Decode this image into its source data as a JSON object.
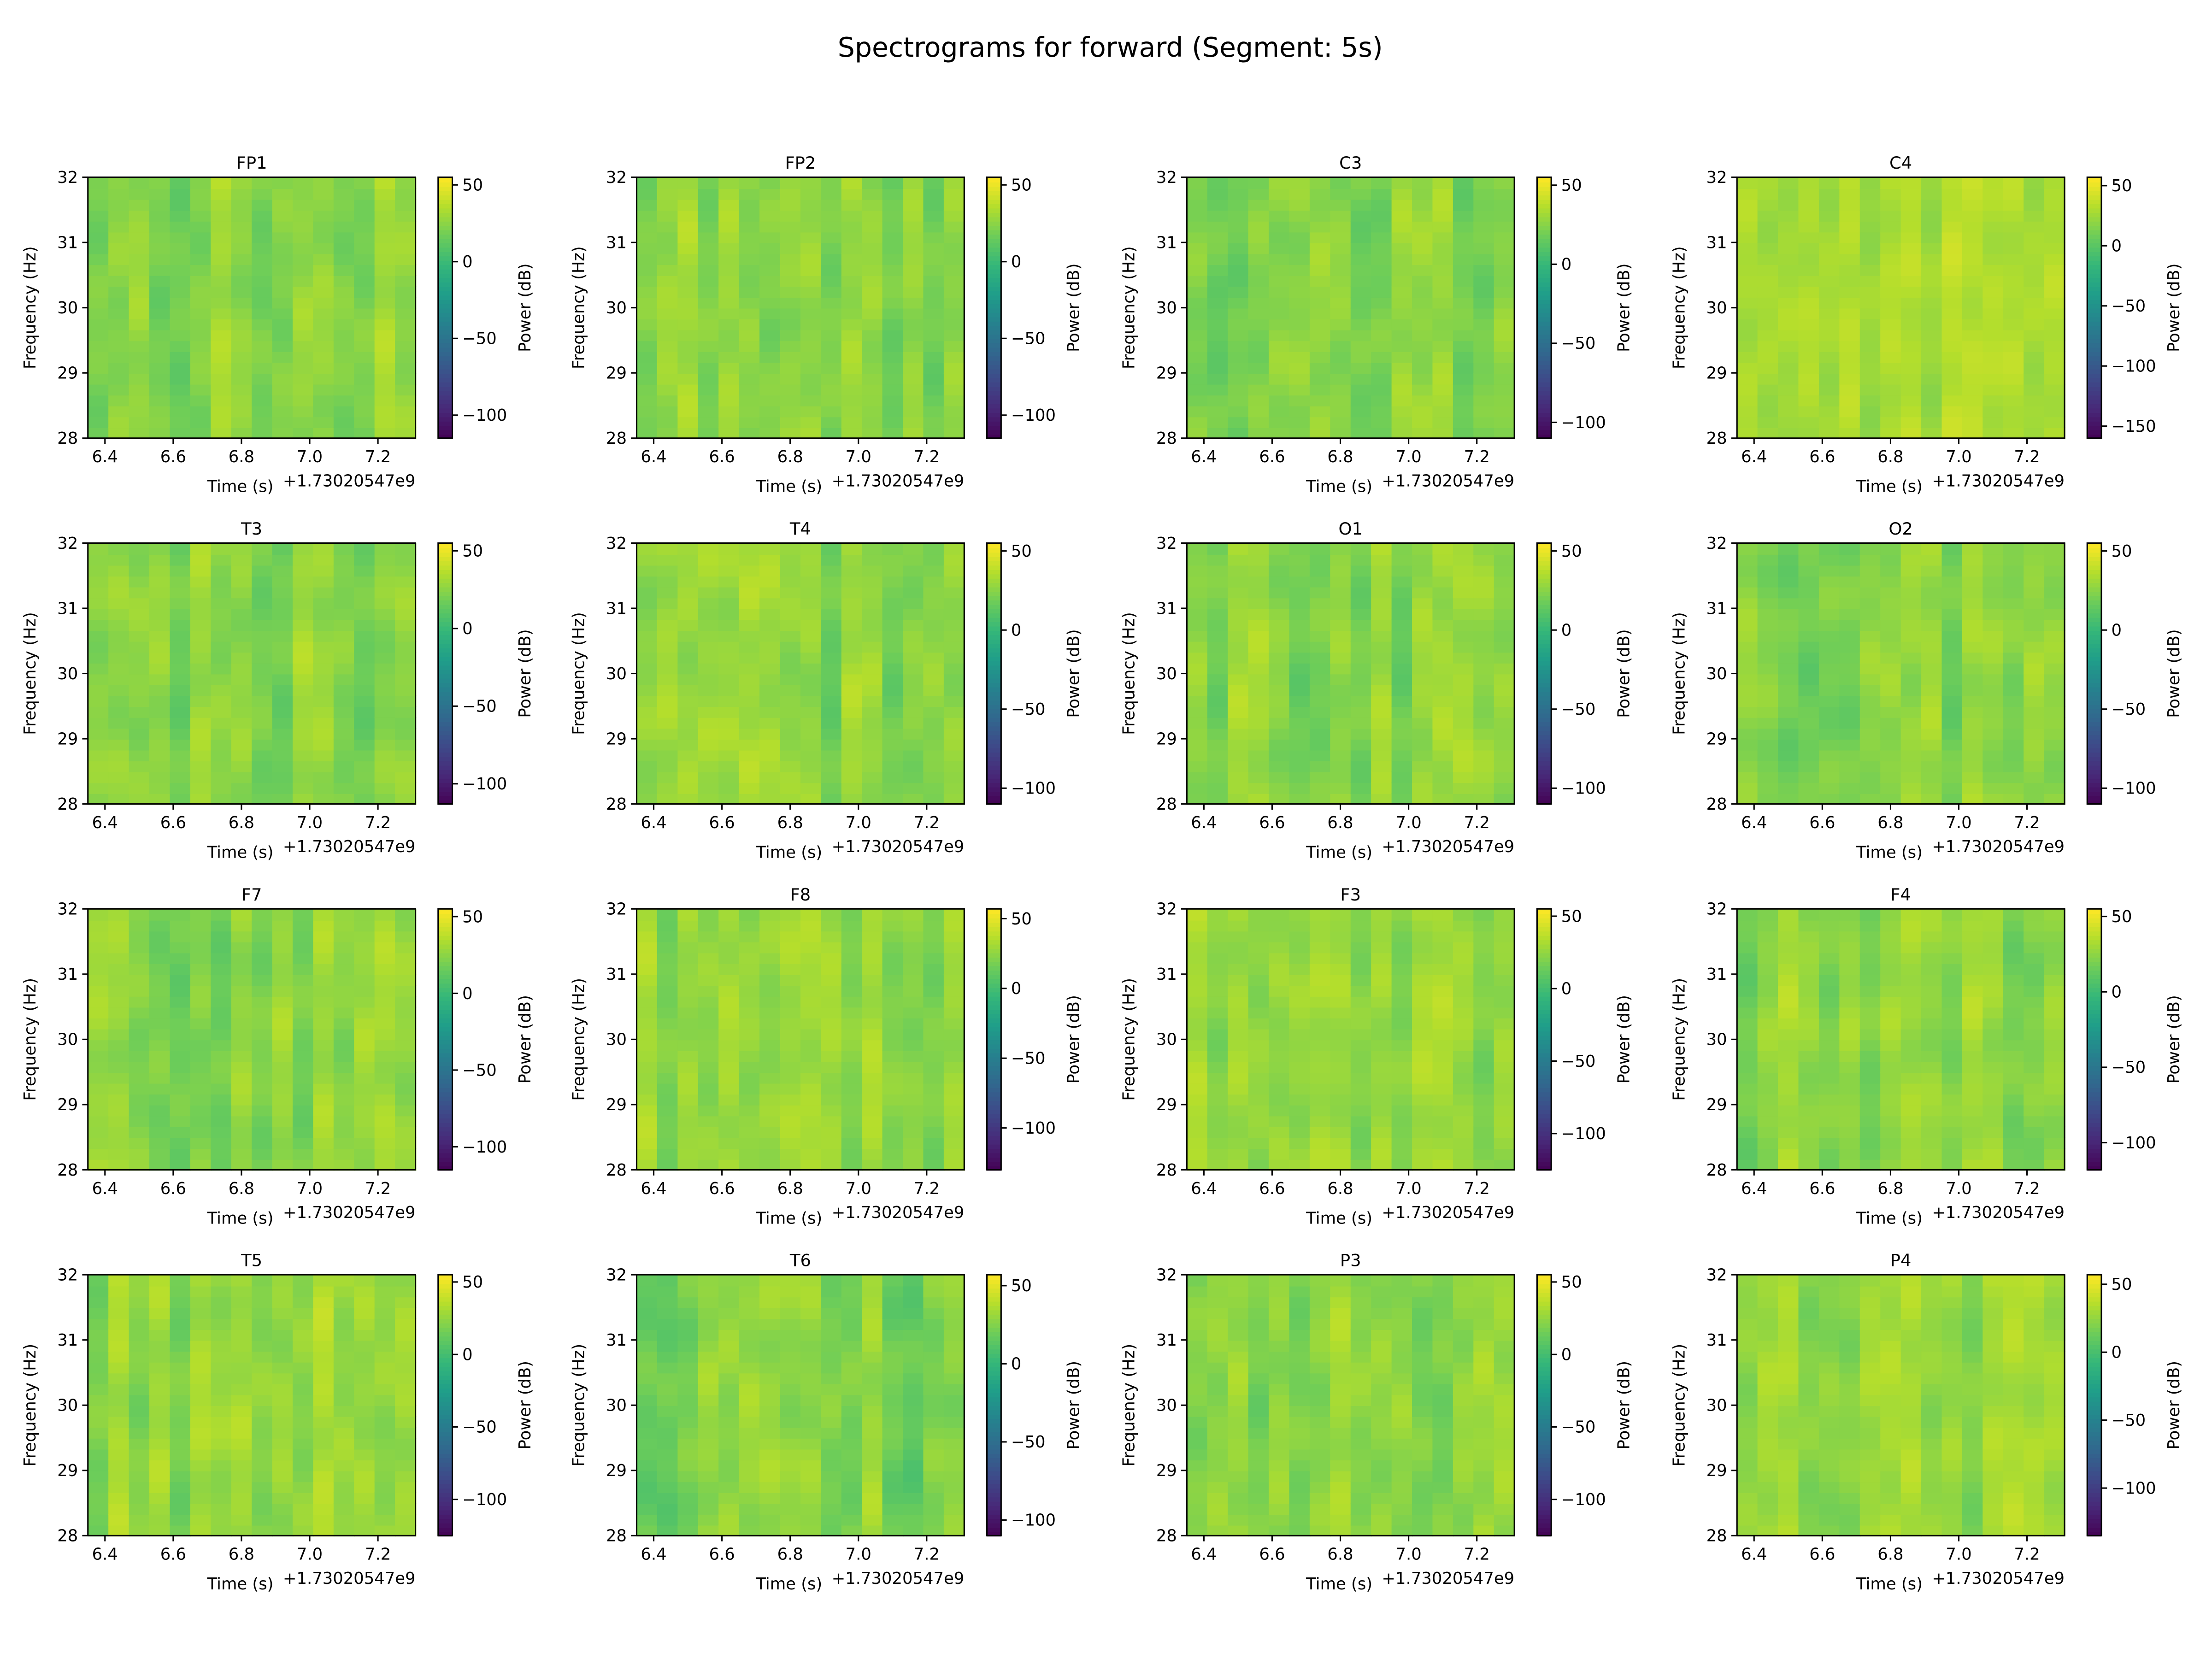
{
  "figure_title": "Spectrograms for forward (Segment: 5s)",
  "colors": {
    "colormap": "viridis"
  },
  "shared": {
    "xlabel": "Time (s)",
    "ylabel": "Frequency (Hz)",
    "colorbar_label": "Power (dB)",
    "x_offset": "+1.73020547e9",
    "xticks": [
      "6.4",
      "6.6",
      "6.8",
      "7.0",
      "7.2"
    ],
    "yticks": [
      "28",
      "29",
      "30",
      "31",
      "32"
    ]
  },
  "chart_data": [
    {
      "type": "heatmap",
      "title": "FP1",
      "xlim": [
        6.35,
        7.31
      ],
      "ylim": [
        28,
        32
      ],
      "clim": [
        -115,
        55
      ],
      "cbar_ticks": [
        "50",
        "0",
        "−50",
        "−100"
      ],
      "typical_power_db": [
        10,
        40
      ]
    },
    {
      "type": "heatmap",
      "title": "FP2",
      "xlim": [
        6.35,
        7.31
      ],
      "ylim": [
        28,
        32
      ],
      "clim": [
        -115,
        55
      ],
      "cbar_ticks": [
        "50",
        "0",
        "−50",
        "−100"
      ],
      "typical_power_db": [
        10,
        40
      ]
    },
    {
      "type": "heatmap",
      "title": "C3",
      "xlim": [
        6.35,
        7.31
      ],
      "ylim": [
        28,
        32
      ],
      "clim": [
        -110,
        55
      ],
      "cbar_ticks": [
        "50",
        "0",
        "−50",
        "−100"
      ],
      "typical_power_db": [
        10,
        40
      ]
    },
    {
      "type": "heatmap",
      "title": "C4",
      "xlim": [
        6.35,
        7.31
      ],
      "ylim": [
        28,
        32
      ],
      "clim": [
        -160,
        57
      ],
      "cbar_ticks": [
        "50",
        "0",
        "−50",
        "−100",
        "−150"
      ],
      "typical_power_db": [
        15,
        45
      ]
    },
    {
      "type": "heatmap",
      "title": "T3",
      "xlim": [
        6.35,
        7.31
      ],
      "ylim": [
        28,
        32
      ],
      "clim": [
        -113,
        55
      ],
      "cbar_ticks": [
        "50",
        "0",
        "−50",
        "−100"
      ],
      "typical_power_db": [
        10,
        40
      ]
    },
    {
      "type": "heatmap",
      "title": "T4",
      "xlim": [
        6.35,
        7.31
      ],
      "ylim": [
        28,
        32
      ],
      "clim": [
        -110,
        55
      ],
      "cbar_ticks": [
        "50",
        "0",
        "−50",
        "−100"
      ],
      "typical_power_db": [
        10,
        40
      ]
    },
    {
      "type": "heatmap",
      "title": "O1",
      "xlim": [
        6.35,
        7.31
      ],
      "ylim": [
        28,
        32
      ],
      "clim": [
        -110,
        55
      ],
      "cbar_ticks": [
        "50",
        "0",
        "−50",
        "−100"
      ],
      "typical_power_db": [
        10,
        40
      ]
    },
    {
      "type": "heatmap",
      "title": "O2",
      "xlim": [
        6.35,
        7.31
      ],
      "ylim": [
        28,
        32
      ],
      "clim": [
        -110,
        55
      ],
      "cbar_ticks": [
        "50",
        "0",
        "−50",
        "−100"
      ],
      "typical_power_db": [
        10,
        40
      ]
    },
    {
      "type": "heatmap",
      "title": "F7",
      "xlim": [
        6.35,
        7.31
      ],
      "ylim": [
        28,
        32
      ],
      "clim": [
        -115,
        55
      ],
      "cbar_ticks": [
        "50",
        "0",
        "−50",
        "−100"
      ],
      "typical_power_db": [
        10,
        40
      ]
    },
    {
      "type": "heatmap",
      "title": "F8",
      "xlim": [
        6.35,
        7.31
      ],
      "ylim": [
        28,
        32
      ],
      "clim": [
        -130,
        57
      ],
      "cbar_ticks": [
        "50",
        "0",
        "−50",
        "−100"
      ],
      "typical_power_db": [
        12,
        42
      ]
    },
    {
      "type": "heatmap",
      "title": "F3",
      "xlim": [
        6.35,
        7.31
      ],
      "ylim": [
        28,
        32
      ],
      "clim": [
        -125,
        55
      ],
      "cbar_ticks": [
        "50",
        "0",
        "−50",
        "−100"
      ],
      "typical_power_db": [
        10,
        40
      ]
    },
    {
      "type": "heatmap",
      "title": "F4",
      "xlim": [
        6.35,
        7.31
      ],
      "ylim": [
        28,
        32
      ],
      "clim": [
        -118,
        55
      ],
      "cbar_ticks": [
        "50",
        "0",
        "−50",
        "−100"
      ],
      "typical_power_db": [
        10,
        40
      ]
    },
    {
      "type": "heatmap",
      "title": "T5",
      "xlim": [
        6.35,
        7.31
      ],
      "ylim": [
        28,
        32
      ],
      "clim": [
        -125,
        55
      ],
      "cbar_ticks": [
        "50",
        "0",
        "−50",
        "−100"
      ],
      "typical_power_db": [
        10,
        42
      ]
    },
    {
      "type": "heatmap",
      "title": "T6",
      "xlim": [
        6.35,
        7.31
      ],
      "ylim": [
        28,
        32
      ],
      "clim": [
        -110,
        57
      ],
      "cbar_ticks": [
        "50",
        "0",
        "−50",
        "−100"
      ],
      "typical_power_db": [
        8,
        40
      ]
    },
    {
      "type": "heatmap",
      "title": "P3",
      "xlim": [
        6.35,
        7.31
      ],
      "ylim": [
        28,
        32
      ],
      "clim": [
        -125,
        55
      ],
      "cbar_ticks": [
        "50",
        "0",
        "−50",
        "−100"
      ],
      "typical_power_db": [
        10,
        42
      ]
    },
    {
      "type": "heatmap",
      "title": "P4",
      "xlim": [
        6.35,
        7.31
      ],
      "ylim": [
        28,
        32
      ],
      "clim": [
        -135,
        57
      ],
      "cbar_ticks": [
        "50",
        "0",
        "−50",
        "−100"
      ],
      "typical_power_db": [
        12,
        42
      ]
    }
  ]
}
